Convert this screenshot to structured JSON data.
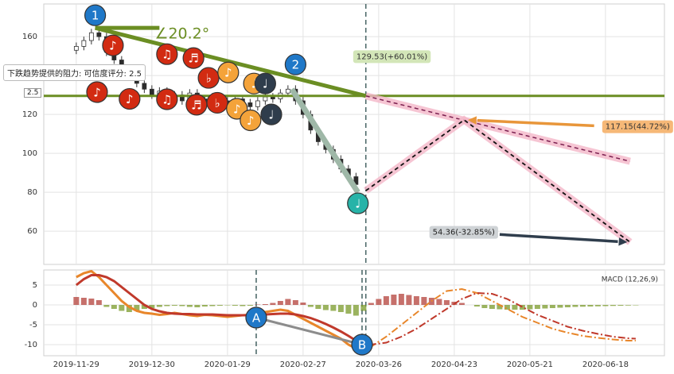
{
  "chart_data": [
    {
      "type": "candlestick",
      "xlim": [
        -8.6,
        155.6
      ],
      "ylim": [
        42.9,
        176.8
      ],
      "yticks": [
        60,
        80,
        100,
        120,
        140,
        160
      ],
      "grid": true,
      "up_color": "#ffffff",
      "down_color": "#2b2b2b",
      "edge_color": "#333333",
      "x": [
        0,
        2,
        4,
        6,
        8,
        10,
        12,
        14,
        16,
        18,
        20,
        22,
        24,
        26,
        28,
        30,
        32,
        34,
        36,
        38,
        40,
        42,
        44,
        46,
        48,
        50,
        52,
        54,
        56,
        58,
        60,
        62,
        64,
        66,
        68,
        70,
        72,
        74
      ],
      "open": [
        153,
        155,
        158,
        162,
        160,
        152,
        148,
        143,
        140,
        136,
        133,
        130,
        132,
        128,
        130,
        127,
        131,
        128,
        126,
        129,
        127,
        125,
        128,
        126,
        124,
        127,
        129,
        128,
        131,
        133,
        127,
        120,
        112,
        106,
        102,
        97,
        92,
        88
      ],
      "high": [
        157,
        160,
        164,
        164,
        162,
        154,
        150,
        145,
        142,
        138,
        135,
        134,
        134,
        132,
        132,
        133,
        133,
        130,
        131,
        131,
        129,
        130,
        130,
        128,
        129,
        131,
        131,
        133,
        135,
        135,
        129,
        122,
        114,
        108,
        104,
        99,
        94,
        90
      ],
      "low": [
        151,
        153,
        156,
        158,
        150,
        146,
        141,
        138,
        134,
        131,
        128,
        128,
        126,
        126,
        125,
        125,
        126,
        124,
        124,
        125,
        123,
        123,
        124,
        122,
        122,
        125,
        126,
        126,
        129,
        125,
        118,
        110,
        104,
        100,
        95,
        90,
        86,
        82
      ],
      "close": [
        155,
        158,
        162,
        160,
        152,
        148,
        143,
        140,
        136,
        133,
        130,
        132,
        128,
        130,
        127,
        131,
        128,
        126,
        129,
        127,
        125,
        128,
        126,
        124,
        127,
        129,
        128,
        131,
        133,
        127,
        120,
        112,
        106,
        102,
        97,
        92,
        88,
        84
      ],
      "lines": [
        {
          "x": [
            -8.6,
            155.6
          ],
          "y": [
            129.53,
            129.53
          ],
          "color": "#6b8e23",
          "width": 3
        },
        {
          "x": [
            5,
            76.6
          ],
          "y": [
            164.5,
            129.53
          ],
          "color": "#6b8e23",
          "width": 5
        },
        {
          "x": [
            5,
            22
          ],
          "y": [
            164.5,
            164.5
          ],
          "color": "#6b8e23",
          "width": 5
        },
        {
          "x": [
            57,
            74.5
          ],
          "y": [
            133,
            80
          ],
          "color": "#9fb8a8",
          "width": 7
        },
        {
          "x": [
            76.6,
            146.5
          ],
          "y": [
            129.53,
            95.9
          ],
          "color": "#7a1f4f",
          "halo": "#f4b6c8",
          "width": 1.5,
          "dash": true
        },
        {
          "x": [
            76.6,
            102.6,
            146.5
          ],
          "y": [
            80.8,
            117.15,
            54.36
          ],
          "color": "#111111",
          "halo": "#f4b6c8",
          "width": 1.8,
          "dash": true
        }
      ],
      "arrows": [
        {
          "x": [
            137,
            103.6
          ],
          "y": [
            114.2,
            117.15
          ],
          "color": "#e8963a"
        },
        {
          "x": [
            112,
            145.8
          ],
          "y": [
            58.3,
            54.36
          ],
          "color": "#2f3d4c"
        }
      ],
      "labels": [
        {
          "text": "129.53(+60.01%)",
          "x": 83.5,
          "y": 149.7,
          "bg": "#d3e6b8",
          "color": "#333333"
        },
        {
          "text": "117.15(44.72%)",
          "x": 148.5,
          "y": 113.7,
          "bg": "#f6b877",
          "color": "#333333"
        },
        {
          "text": "54.36(-32.85%)",
          "x": 102.5,
          "y": 59.4,
          "bg": "#cfd3d6",
          "color": "#222222"
        }
      ],
      "angle_text": "∠20.2°",
      "angle_x": 28,
      "angle_y": 161.2,
      "markers": [
        {
          "label": "♪",
          "x": 9.7,
          "y": 155.5,
          "color": "#d22b12"
        },
        {
          "label": "♪",
          "x": 5.5,
          "y": 131.5,
          "color": "#d22b12"
        },
        {
          "label": "♪",
          "x": 14.1,
          "y": 128,
          "color": "#d22b12"
        },
        {
          "label": "♫",
          "x": 24,
          "y": 151,
          "color": "#d22b12"
        },
        {
          "label": "♫",
          "x": 24,
          "y": 127.8,
          "color": "#d22b12"
        },
        {
          "label": "♬",
          "x": 31,
          "y": 149,
          "color": "#d22b12"
        },
        {
          "label": "♬",
          "x": 31.8,
          "y": 125,
          "color": "#d22b12"
        },
        {
          "label": "♭",
          "x": 35,
          "y": 138.8,
          "color": "#d22b12"
        },
        {
          "label": "♭",
          "x": 37.3,
          "y": 126,
          "color": "#d22b12"
        },
        {
          "label": "♪",
          "x": 40.2,
          "y": 141.6,
          "color": "#f4a33a"
        },
        {
          "label": "♪",
          "x": 42.5,
          "y": 122.9,
          "color": "#f4a33a"
        },
        {
          "label": "♩",
          "x": 47,
          "y": 135.9,
          "color": "#f4a33a"
        },
        {
          "label": "♪",
          "x": 46.1,
          "y": 117,
          "color": "#f4a33a"
        },
        {
          "label": "♩",
          "x": 50,
          "y": 135.9,
          "color": "#2f3d4c"
        },
        {
          "label": "♩",
          "x": 51.6,
          "y": 120,
          "color": "#2f3d4c"
        },
        {
          "label": "♩",
          "x": 74.5,
          "y": 74.3,
          "color": "#27b3a8"
        },
        {
          "label": "1",
          "x": 5,
          "y": 171,
          "color": "#1f78c8"
        },
        {
          "label": "2",
          "x": 58,
          "y": 145.7,
          "color": "#1f78c8"
        }
      ],
      "vlines": [
        76.6
      ],
      "resistance_note": "下跌趋势提供的阻力: 可信度评分: 2.5",
      "score_badge": "2.5"
    },
    {
      "type": "macd",
      "title": "MACD (12,26,9)",
      "xlim": [
        -8.6,
        155.6
      ],
      "ylim": [
        -12.8,
        8.8
      ],
      "yticks": [
        5,
        0,
        -5,
        -10
      ],
      "grid": true,
      "xticks": [
        {
          "value": 0,
          "label": "2019-11-29"
        },
        {
          "value": 20,
          "label": "2019-12-30"
        },
        {
          "value": 40,
          "label": "2020-01-29"
        },
        {
          "value": 60,
          "label": "2020-02-27"
        },
        {
          "value": 80,
          "label": "2020-03-26"
        },
        {
          "value": 100,
          "label": "2020-04-23"
        },
        {
          "value": 120,
          "label": "2020-05-21"
        },
        {
          "value": 140,
          "label": "2020-06-18"
        }
      ],
      "hist": {
        "up_color": "#b3403a",
        "down_color": "#7a9a2a",
        "x": [
          0,
          2,
          4,
          6,
          8,
          10,
          12,
          14,
          16,
          18,
          20,
          22,
          24,
          26,
          28,
          30,
          32,
          34,
          36,
          38,
          40,
          42,
          44,
          46,
          48,
          50,
          52,
          54,
          56,
          58,
          60,
          62,
          64,
          66,
          68,
          70,
          72,
          74,
          76,
          78,
          80,
          82,
          84,
          86,
          88,
          90,
          92,
          94,
          96,
          98,
          100,
          102,
          104,
          106,
          108,
          110,
          112,
          114,
          116,
          118,
          120,
          122,
          124,
          126,
          128,
          130,
          132,
          134,
          136,
          138,
          140,
          142,
          144,
          146,
          148
        ],
        "values": [
          2.0,
          1.8,
          1.6,
          1.2,
          -0.5,
          -1,
          -1.5,
          -1.8,
          -1.5,
          -1,
          -0.8,
          -0.5,
          -0.3,
          -0.2,
          -0.3,
          -0.5,
          -0.6,
          -0.4,
          -0.3,
          -0.2,
          -0.1,
          -0.2,
          -0.3,
          -0.2,
          0.1,
          0.2,
          0.5,
          1,
          1.5,
          1.2,
          0.6,
          -0.5,
          -1,
          -1.3,
          -1.5,
          -1.8,
          -2.2,
          -2.7,
          -1.5,
          0.5,
          1.5,
          2.2,
          2.6,
          2.8,
          2.5,
          2.2,
          2.0,
          1.8,
          1.5,
          1.2,
          0.8,
          0.5,
          0,
          -0.4,
          -0.8,
          -1.0,
          -1.1,
          -1.2,
          -1.2,
          -1.2,
          -1.1,
          -1.0,
          -0.9,
          -0.8,
          -0.7,
          -0.6,
          -0.5,
          -0.45,
          -0.4,
          -0.35,
          -0.3,
          -0.25,
          -0.2,
          -0.15,
          -0.1
        ]
      },
      "series": [
        {
          "color": "#e8862a",
          "width": 3,
          "x": [
            0,
            2,
            4,
            6,
            8,
            10,
            12,
            14,
            16,
            18,
            20,
            22,
            24,
            26,
            28,
            30,
            32,
            34,
            36,
            38,
            40,
            42,
            44,
            46,
            48,
            50,
            52,
            54,
            56,
            58,
            60,
            62,
            64,
            66,
            68,
            70,
            72,
            74
          ],
          "values": [
            7,
            8,
            8.5,
            7,
            5,
            3,
            1,
            -0.5,
            -1.5,
            -2,
            -2.2,
            -2.5,
            -2.3,
            -2,
            -2.3,
            -2.6,
            -2.8,
            -2.5,
            -2.6,
            -2.8,
            -3,
            -2.8,
            -2.6,
            -2.5,
            -2.2,
            -1.8,
            -1.5,
            -1.2,
            -1.5,
            -2.5,
            -3.5,
            -4.5,
            -5.5,
            -6.5,
            -7.5,
            -8.5,
            -10,
            -11
          ]
        },
        {
          "color": "#c0392b",
          "width": 3,
          "x": [
            0,
            2,
            4,
            6,
            8,
            10,
            12,
            14,
            16,
            18,
            20,
            22,
            24,
            26,
            28,
            30,
            32,
            34,
            36,
            38,
            40,
            42,
            44,
            46,
            48,
            50,
            52,
            54,
            56,
            58,
            60,
            62,
            64,
            66,
            68,
            70,
            72,
            74
          ],
          "values": [
            5,
            6.5,
            7.5,
            7.5,
            7,
            6,
            4.5,
            3,
            1.5,
            0,
            -1,
            -1.6,
            -2,
            -2.2,
            -2.3,
            -2.3,
            -2.4,
            -2.4,
            -2.4,
            -2.5,
            -2.6,
            -2.6,
            -2.6,
            -2.6,
            -2.5,
            -2.4,
            -2.3,
            -2.2,
            -2.2,
            -2.4,
            -2.8,
            -3.3,
            -4,
            -4.8,
            -5.7,
            -6.7,
            -7.8,
            -9
          ]
        },
        {
          "color": "#e8862a",
          "width": 2,
          "dash": true,
          "x": [
            74,
            78,
            82,
            86,
            90,
            94,
            98,
            102,
            106,
            110,
            114,
            118,
            122,
            126,
            130,
            134,
            138,
            142,
            146,
            148
          ],
          "values": [
            -11,
            -10.5,
            -8,
            -5,
            -2,
            1,
            3.5,
            4,
            3,
            1,
            -1,
            -3,
            -4.5,
            -6,
            -7,
            -7.8,
            -8.3,
            -8.7,
            -9,
            -9
          ]
        },
        {
          "color": "#c0392b",
          "width": 2,
          "dash": true,
          "x": [
            74,
            78,
            82,
            86,
            90,
            94,
            98,
            102,
            106,
            110,
            114,
            118,
            122,
            126,
            130,
            134,
            138,
            142,
            146,
            148
          ],
          "values": [
            -9,
            -10,
            -9.5,
            -8,
            -6,
            -3.5,
            -1,
            1.5,
            3,
            2.8,
            1.5,
            -0.5,
            -2.5,
            -4,
            -5.5,
            -6.5,
            -7.3,
            -8,
            -8.4,
            -8.5
          ]
        }
      ],
      "lines": [
        {
          "x": [
            47.6,
            75.6
          ],
          "y": [
            -3.2,
            -10
          ],
          "color": "#8c8c8c",
          "width": 3
        }
      ],
      "markers": [
        {
          "label": "A",
          "x": 47.6,
          "y": -3.2,
          "color": "#1f78c8"
        },
        {
          "label": "B",
          "x": 75.6,
          "y": -10,
          "color": "#1f78c8"
        }
      ],
      "vlines": [
        47.6,
        75.6,
        76.6
      ]
    }
  ]
}
